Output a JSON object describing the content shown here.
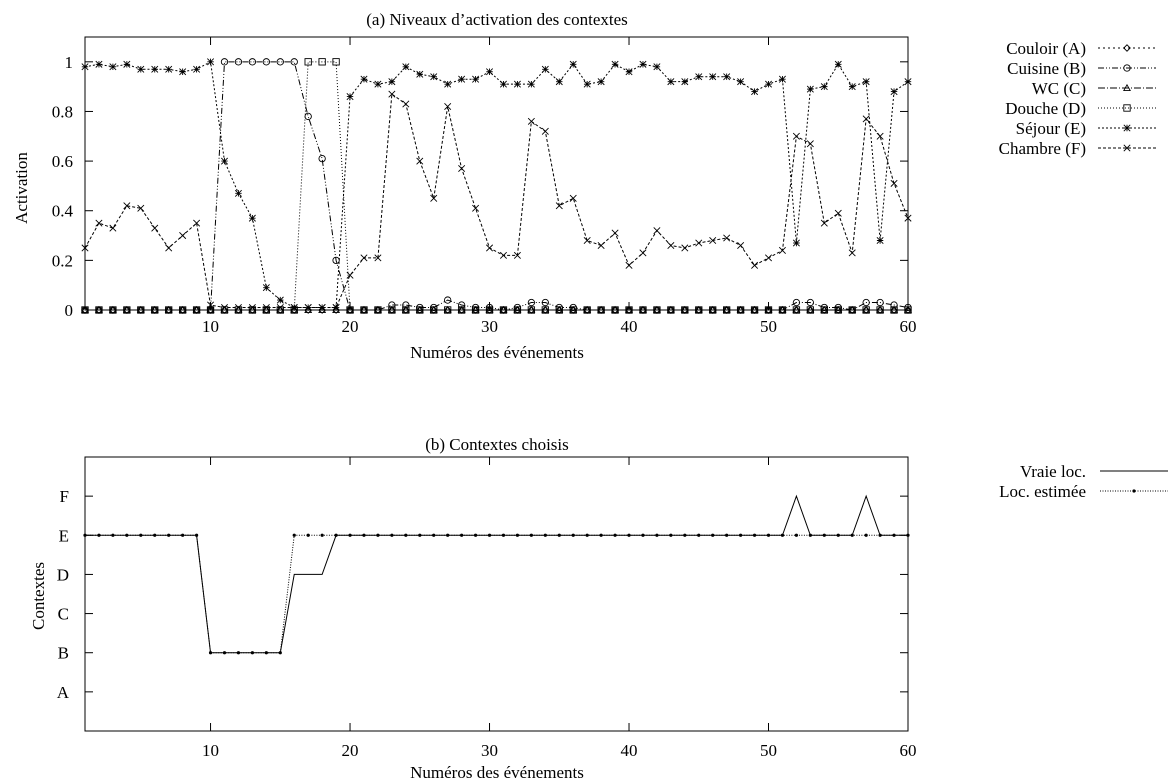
{
  "chart_data": [
    {
      "type": "line",
      "title": "(a) Niveaux d’activation des contextes",
      "xlabel": "Numéros des événements",
      "ylabel": "Activation",
      "xlim": [
        1,
        60
      ],
      "ylim": [
        0,
        1.1
      ],
      "xticks": [
        10,
        20,
        30,
        40,
        50,
        60
      ],
      "yticks": [
        0,
        0.2,
        0.4,
        0.6,
        0.8,
        1
      ],
      "ytick_labels": [
        "0",
        "0.2",
        "0.4",
        "0.6",
        "0.8",
        "1"
      ],
      "grid": false,
      "legend_position": "right",
      "x": [
        1,
        2,
        3,
        4,
        5,
        6,
        7,
        8,
        9,
        10,
        11,
        12,
        13,
        14,
        15,
        16,
        17,
        18,
        19,
        20,
        21,
        22,
        23,
        24,
        25,
        26,
        27,
        28,
        29,
        30,
        31,
        32,
        33,
        34,
        35,
        36,
        37,
        38,
        39,
        40,
        41,
        42,
        43,
        44,
        45,
        46,
        47,
        48,
        49,
        50,
        51,
        52,
        53,
        54,
        55,
        56,
        57,
        58,
        59,
        60
      ],
      "series": [
        {
          "name": "Couloir (A)",
          "marker": "diamond",
          "dash": "2,3",
          "values": [
            0,
            0,
            0,
            0,
            0,
            0,
            0,
            0,
            0,
            0,
            0,
            0,
            0,
            0,
            0,
            0,
            0,
            0,
            0,
            0,
            0,
            0,
            0,
            0,
            0,
            0,
            0,
            0,
            0,
            0,
            0,
            0,
            0,
            0,
            0,
            0,
            0,
            0,
            0,
            0,
            0,
            0,
            0,
            0,
            0,
            0,
            0,
            0,
            0,
            0,
            0,
            0,
            0,
            0,
            0,
            0,
            0,
            0,
            0,
            0
          ]
        },
        {
          "name": "Cuisine (B)",
          "marker": "circle",
          "dash": "6,2,1,2,1,2",
          "values": [
            0,
            0,
            0,
            0,
            0,
            0,
            0,
            0,
            0,
            0,
            1,
            1,
            1,
            1,
            1,
            1,
            0.78,
            0.61,
            0.2,
            0,
            0,
            0,
            0.02,
            0.02,
            0.01,
            0.01,
            0.04,
            0.02,
            0.01,
            0.01,
            0,
            0.01,
            0.03,
            0.03,
            0.01,
            0.01,
            0,
            0,
            0,
            0,
            0,
            0,
            0,
            0,
            0,
            0,
            0,
            0,
            0,
            0,
            0,
            0.03,
            0.03,
            0.01,
            0.01,
            0,
            0.03,
            0.03,
            0.02,
            0.01
          ]
        },
        {
          "name": "WC (C)",
          "marker": "triangle",
          "dash": "7,2,1,2",
          "values": [
            0,
            0,
            0,
            0,
            0,
            0,
            0,
            0,
            0,
            0,
            0,
            0,
            0,
            0,
            0,
            0,
            0,
            0,
            0,
            0,
            0,
            0,
            0,
            0,
            0,
            0,
            0,
            0,
            0,
            0,
            0,
            0,
            0,
            0,
            0,
            0,
            0,
            0,
            0,
            0,
            0,
            0,
            0,
            0,
            0,
            0,
            0,
            0,
            0,
            0,
            0,
            0,
            0,
            0,
            0,
            0,
            0,
            0,
            0,
            0
          ]
        },
        {
          "name": "Douche (D)",
          "marker": "square",
          "dash": "1,2",
          "values": [
            0,
            0,
            0,
            0,
            0,
            0,
            0,
            0,
            0,
            0,
            0,
            0,
            0,
            0,
            0,
            0,
            1,
            1,
            1,
            0,
            0,
            0,
            0,
            0,
            0,
            0,
            0,
            0,
            0,
            0,
            0,
            0,
            0,
            0,
            0,
            0,
            0,
            0,
            0,
            0,
            0,
            0,
            0,
            0,
            0,
            0,
            0,
            0,
            0,
            0,
            0,
            0,
            0,
            0,
            0,
            0,
            0,
            0,
            0,
            0
          ]
        },
        {
          "name": "Séjour (E)",
          "marker": "star",
          "dash": "2,2",
          "values": [
            0.98,
            0.99,
            0.98,
            0.99,
            0.97,
            0.97,
            0.97,
            0.96,
            0.97,
            1,
            0.6,
            0.47,
            0.37,
            0.09,
            0.04,
            0.01,
            0.01,
            0.01,
            0.01,
            0.86,
            0.93,
            0.91,
            0.92,
            0.98,
            0.95,
            0.94,
            0.91,
            0.93,
            0.93,
            0.96,
            0.91,
            0.91,
            0.91,
            0.97,
            0.92,
            0.99,
            0.91,
            0.92,
            0.99,
            0.96,
            0.99,
            0.98,
            0.92,
            0.92,
            0.94,
            0.94,
            0.94,
            0.92,
            0.88,
            0.91,
            0.93,
            0.27,
            0.89,
            0.9,
            0.99,
            0.9,
            0.92,
            0.28,
            0.88,
            0.92
          ]
        },
        {
          "name": "Chambre (F)",
          "marker": "x",
          "dash": "3,2",
          "values": [
            0.25,
            0.35,
            0.33,
            0.42,
            0.41,
            0.33,
            0.25,
            0.3,
            0.35,
            0.02,
            0.01,
            0.01,
            0.01,
            0.01,
            0.01,
            0.01,
            0.01,
            0.01,
            0.01,
            0.14,
            0.21,
            0.21,
            0.87,
            0.83,
            0.6,
            0.45,
            0.82,
            0.57,
            0.41,
            0.25,
            0.22,
            0.22,
            0.76,
            0.72,
            0.42,
            0.45,
            0.28,
            0.26,
            0.31,
            0.18,
            0.23,
            0.32,
            0.26,
            0.25,
            0.27,
            0.28,
            0.29,
            0.26,
            0.18,
            0.21,
            0.24,
            0.7,
            0.67,
            0.35,
            0.39,
            0.23,
            0.77,
            0.7,
            0.51,
            0.37
          ]
        }
      ]
    },
    {
      "type": "line",
      "title": "(b) Contextes choisis",
      "xlabel": "Numéros des événements",
      "ylabel": "Contextes",
      "xlim": [
        1,
        60
      ],
      "ylim": [
        0,
        7
      ],
      "xticks": [
        10,
        20,
        30,
        40,
        50,
        60
      ],
      "categories": [
        "A",
        "B",
        "C",
        "D",
        "E",
        "F"
      ],
      "grid": false,
      "legend_position": "right",
      "x": [
        1,
        2,
        3,
        4,
        5,
        6,
        7,
        8,
        9,
        10,
        11,
        12,
        13,
        14,
        15,
        16,
        17,
        18,
        19,
        20,
        21,
        22,
        23,
        24,
        25,
        26,
        27,
        28,
        29,
        30,
        31,
        32,
        33,
        34,
        35,
        36,
        37,
        38,
        39,
        40,
        41,
        42,
        43,
        44,
        45,
        46,
        47,
        48,
        49,
        50,
        51,
        52,
        53,
        54,
        55,
        56,
        57,
        58,
        59,
        60
      ],
      "series": [
        {
          "name": "Vraie loc.",
          "style": "solid",
          "values": [
            "E",
            "E",
            "E",
            "E",
            "E",
            "E",
            "E",
            "E",
            "E",
            "B",
            "B",
            "B",
            "B",
            "B",
            "B",
            "D",
            "D",
            "D",
            "E",
            "E",
            "E",
            "E",
            "E",
            "E",
            "E",
            "E",
            "E",
            "E",
            "E",
            "E",
            "E",
            "E",
            "E",
            "E",
            "E",
            "E",
            "E",
            "E",
            "E",
            "E",
            "E",
            "E",
            "E",
            "E",
            "E",
            "E",
            "E",
            "E",
            "E",
            "E",
            "E",
            "F",
            "E",
            "E",
            "E",
            "E",
            "F",
            "E",
            "E",
            "E"
          ]
        },
        {
          "name": "Loc. estimée",
          "style": "dotted-with-points",
          "values": [
            "E",
            "E",
            "E",
            "E",
            "E",
            "E",
            "E",
            "E",
            "E",
            "B",
            "B",
            "B",
            "B",
            "B",
            "B",
            "E",
            "E",
            "E",
            "E",
            "E",
            "E",
            "E",
            "E",
            "E",
            "E",
            "E",
            "E",
            "E",
            "E",
            "E",
            "E",
            "E",
            "E",
            "E",
            "E",
            "E",
            "E",
            "E",
            "E",
            "E",
            "E",
            "E",
            "E",
            "E",
            "E",
            "E",
            "E",
            "E",
            "E",
            "E",
            "E",
            "E",
            "E",
            "E",
            "E",
            "E",
            "E",
            "E",
            "E",
            "E"
          ]
        }
      ]
    }
  ]
}
